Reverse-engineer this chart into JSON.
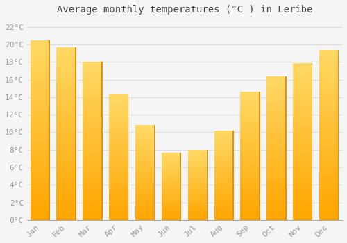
{
  "title": "Average monthly temperatures (°C ) in Leribe",
  "months": [
    "Jan",
    "Feb",
    "Mar",
    "Apr",
    "May",
    "Jun",
    "Jul",
    "Aug",
    "Sep",
    "Oct",
    "Nov",
    "Dec"
  ],
  "values": [
    20.5,
    19.7,
    18.0,
    14.3,
    10.8,
    7.7,
    8.0,
    10.2,
    14.6,
    16.4,
    17.9,
    19.4
  ],
  "bar_color_top": "#FFD966",
  "bar_color_bottom": "#FFA500",
  "bar_color_mid": "#FFB733",
  "background_color": "#F5F5F5",
  "grid_color": "#DDDDDD",
  "ytick_labels": [
    "0°C",
    "2°C",
    "4°C",
    "6°C",
    "8°C",
    "10°C",
    "12°C",
    "14°C",
    "16°C",
    "18°C",
    "20°C",
    "22°C"
  ],
  "ytick_values": [
    0,
    2,
    4,
    6,
    8,
    10,
    12,
    14,
    16,
    18,
    20,
    22
  ],
  "ylim": [
    0,
    23
  ],
  "title_fontsize": 10,
  "tick_fontsize": 8,
  "tick_color": "#999999",
  "title_color": "#444444",
  "font_family": "monospace",
  "bar_width": 0.75
}
